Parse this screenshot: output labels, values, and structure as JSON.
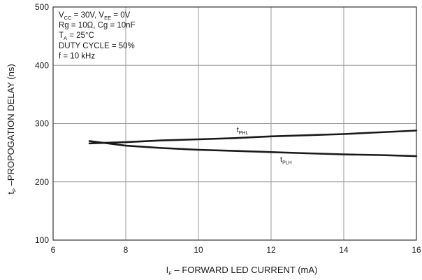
{
  "chart_data": {
    "type": "line",
    "xlabel": {
      "main": "I",
      "sub": "F",
      "rest": " – FORWARD LED CURRENT (mA)"
    },
    "ylabel": {
      "main": "t",
      "sub": "P",
      "rest": " –PROPOGATION DELAY (ns)"
    },
    "xlim": [
      6,
      16
    ],
    "ylim": [
      100,
      500
    ],
    "x_ticks": [
      6,
      8,
      10,
      12,
      14,
      16
    ],
    "y_ticks": [
      100,
      200,
      300,
      400,
      500
    ],
    "grid": true,
    "annotations": [
      {
        "parts": [
          [
            "V",
            ""
          ],
          [
            "CC",
            "sub"
          ],
          [
            " = 30V, V",
            ""
          ],
          [
            "EE",
            "sub"
          ],
          [
            " = 0V",
            ""
          ]
        ]
      },
      {
        "parts": [
          [
            "Rg = 10Ω, Cg = 10nF",
            ""
          ]
        ]
      },
      {
        "parts": [
          [
            "T",
            ""
          ],
          [
            "A",
            "sub"
          ],
          [
            " = 25°C",
            ""
          ]
        ]
      },
      {
        "parts": [
          [
            "DUTY CYCLE = 50%",
            ""
          ]
        ]
      },
      {
        "parts": [
          [
            "f = 10 kHz",
            ""
          ]
        ]
      }
    ],
    "series": [
      {
        "name": "tPHL",
        "label_main": "t",
        "label_sub": "PHL",
        "x": [
          7,
          8,
          9,
          10,
          11,
          12,
          13,
          14,
          15,
          16
        ],
        "y": [
          266,
          268,
          271,
          273,
          275,
          278,
          280,
          282,
          285,
          288
        ]
      },
      {
        "name": "tPLH",
        "label_main": "t",
        "label_sub": "PLH",
        "x": [
          7,
          8,
          9,
          10,
          11,
          12,
          13,
          14,
          15,
          16
        ],
        "y": [
          270,
          262,
          258,
          255,
          253,
          251,
          249,
          247,
          246,
          244
        ]
      }
    ]
  }
}
